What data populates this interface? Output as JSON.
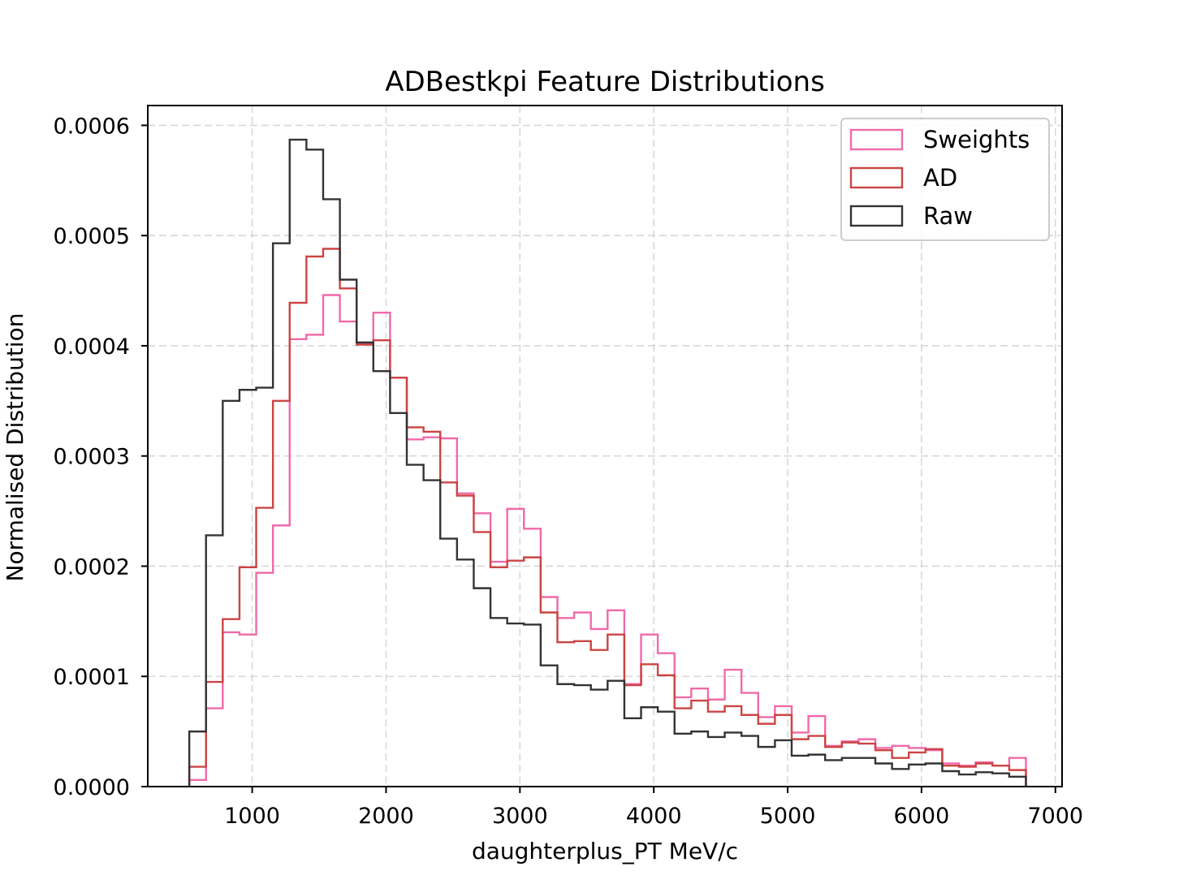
{
  "chart_data": {
    "type": "histogram",
    "title": "ADBestkpi Feature Distributions",
    "xlabel": "daughterplus_PT MeV/c",
    "ylabel": "Normalised Distribution",
    "xlim": [
      220,
      7050
    ],
    "ylim": [
      0,
      0.000618
    ],
    "grid": true,
    "legend_position": "top-right",
    "x_ticks": [
      1000,
      2000,
      3000,
      4000,
      5000,
      6000,
      7000
    ],
    "x_tick_labels": [
      "1000",
      "2000",
      "3000",
      "4000",
      "5000",
      "6000",
      "7000"
    ],
    "y_ticks": [
      0,
      0.0001,
      0.0002,
      0.0003,
      0.0004,
      0.0005,
      0.0006
    ],
    "y_tick_labels": [
      "0.0000",
      "0.0001",
      "0.0002",
      "0.0003",
      "0.0004",
      "0.0005",
      "0.0006"
    ],
    "bin_edges": [
      530,
      655,
      780,
      905,
      1030,
      1155,
      1280,
      1405,
      1530,
      1655,
      1780,
      1905,
      2030,
      2155,
      2280,
      2405,
      2530,
      2655,
      2780,
      2905,
      3030,
      3155,
      3280,
      3405,
      3530,
      3655,
      3780,
      3905,
      4030,
      4155,
      4280,
      4405,
      4530,
      4655,
      4780,
      4905,
      5030,
      5155,
      5280,
      5405,
      5530,
      5655,
      5780,
      5905,
      6030,
      6155,
      6280,
      6405,
      6530,
      6655,
      6780
    ],
    "series": [
      {
        "name": "Sweights",
        "color": "#f06aa9",
        "values": [
          6e-06,
          7.1e-05,
          0.00014,
          0.000138,
          0.000194,
          0.000237,
          0.000406,
          0.00041,
          0.000446,
          0.000422,
          0.000402,
          0.00043,
          0.000371,
          0.000315,
          0.000317,
          0.000316,
          0.000266,
          0.000248,
          0.000204,
          0.000252,
          0.000234,
          0.000172,
          0.000153,
          0.000158,
          0.000143,
          0.00016,
          9.3e-05,
          0.000138,
          0.000121,
          8.1e-05,
          8.9e-05,
          7.9e-05,
          0.000106,
          8.5e-05,
          6.3e-05,
          7.3e-05,
          4.9e-05,
          6.4e-05,
          3.7e-05,
          4.1e-05,
          4.3e-05,
          3.5e-05,
          3.7e-05,
          3.5e-05,
          3.3e-05,
          2.1e-05,
          1.9e-05,
          2.2e-05,
          1.9e-05,
          2.6e-05
        ]
      },
      {
        "name": "AD",
        "color": "#cc4444",
        "values": [
          1.8e-05,
          9.5e-05,
          0.000152,
          0.000199,
          0.000253,
          0.00035,
          0.000439,
          0.000481,
          0.000488,
          0.000452,
          0.000401,
          0.000405,
          0.000371,
          0.000326,
          0.000322,
          0.000276,
          0.000264,
          0.000231,
          0.000199,
          0.000205,
          0.000208,
          0.000158,
          0.000131,
          0.000132,
          0.000124,
          0.000138,
          9.2e-05,
          0.000111,
          0.000101,
          7.1e-05,
          7.8e-05,
          6.8e-05,
          7.3e-05,
          6.5e-05,
          5.7e-05,
          6.5e-05,
          4.3e-05,
          4.6e-05,
          3.6e-05,
          4e-05,
          3.9e-05,
          3.3e-05,
          2.6e-05,
          3.1e-05,
          3.4e-05,
          1.9e-05,
          1.8e-05,
          2.1e-05,
          1.9e-05,
          1.5e-05
        ]
      },
      {
        "name": "Raw",
        "color": "#333333",
        "values": [
          5e-05,
          0.000228,
          0.00035,
          0.00036,
          0.000362,
          0.000493,
          0.000587,
          0.000578,
          0.000533,
          0.00046,
          0.000403,
          0.000377,
          0.000339,
          0.000292,
          0.000278,
          0.000225,
          0.000206,
          0.00018,
          0.000153,
          0.000148,
          0.000147,
          0.00011,
          9.3e-05,
          9.2e-05,
          8.8e-05,
          9.6e-05,
          6.2e-05,
          7.2e-05,
          6.8e-05,
          4.8e-05,
          5e-05,
          4.5e-05,
          4.9e-05,
          4.6e-05,
          3.6e-05,
          4.2e-05,
          2.8e-05,
          2.9e-05,
          2.4e-05,
          2.6e-05,
          2.6e-05,
          2.1e-05,
          1.6e-05,
          2e-05,
          2.1e-05,
          1.4e-05,
          1.1e-05,
          1.3e-05,
          1.2e-05,
          9e-06
        ]
      }
    ]
  }
}
